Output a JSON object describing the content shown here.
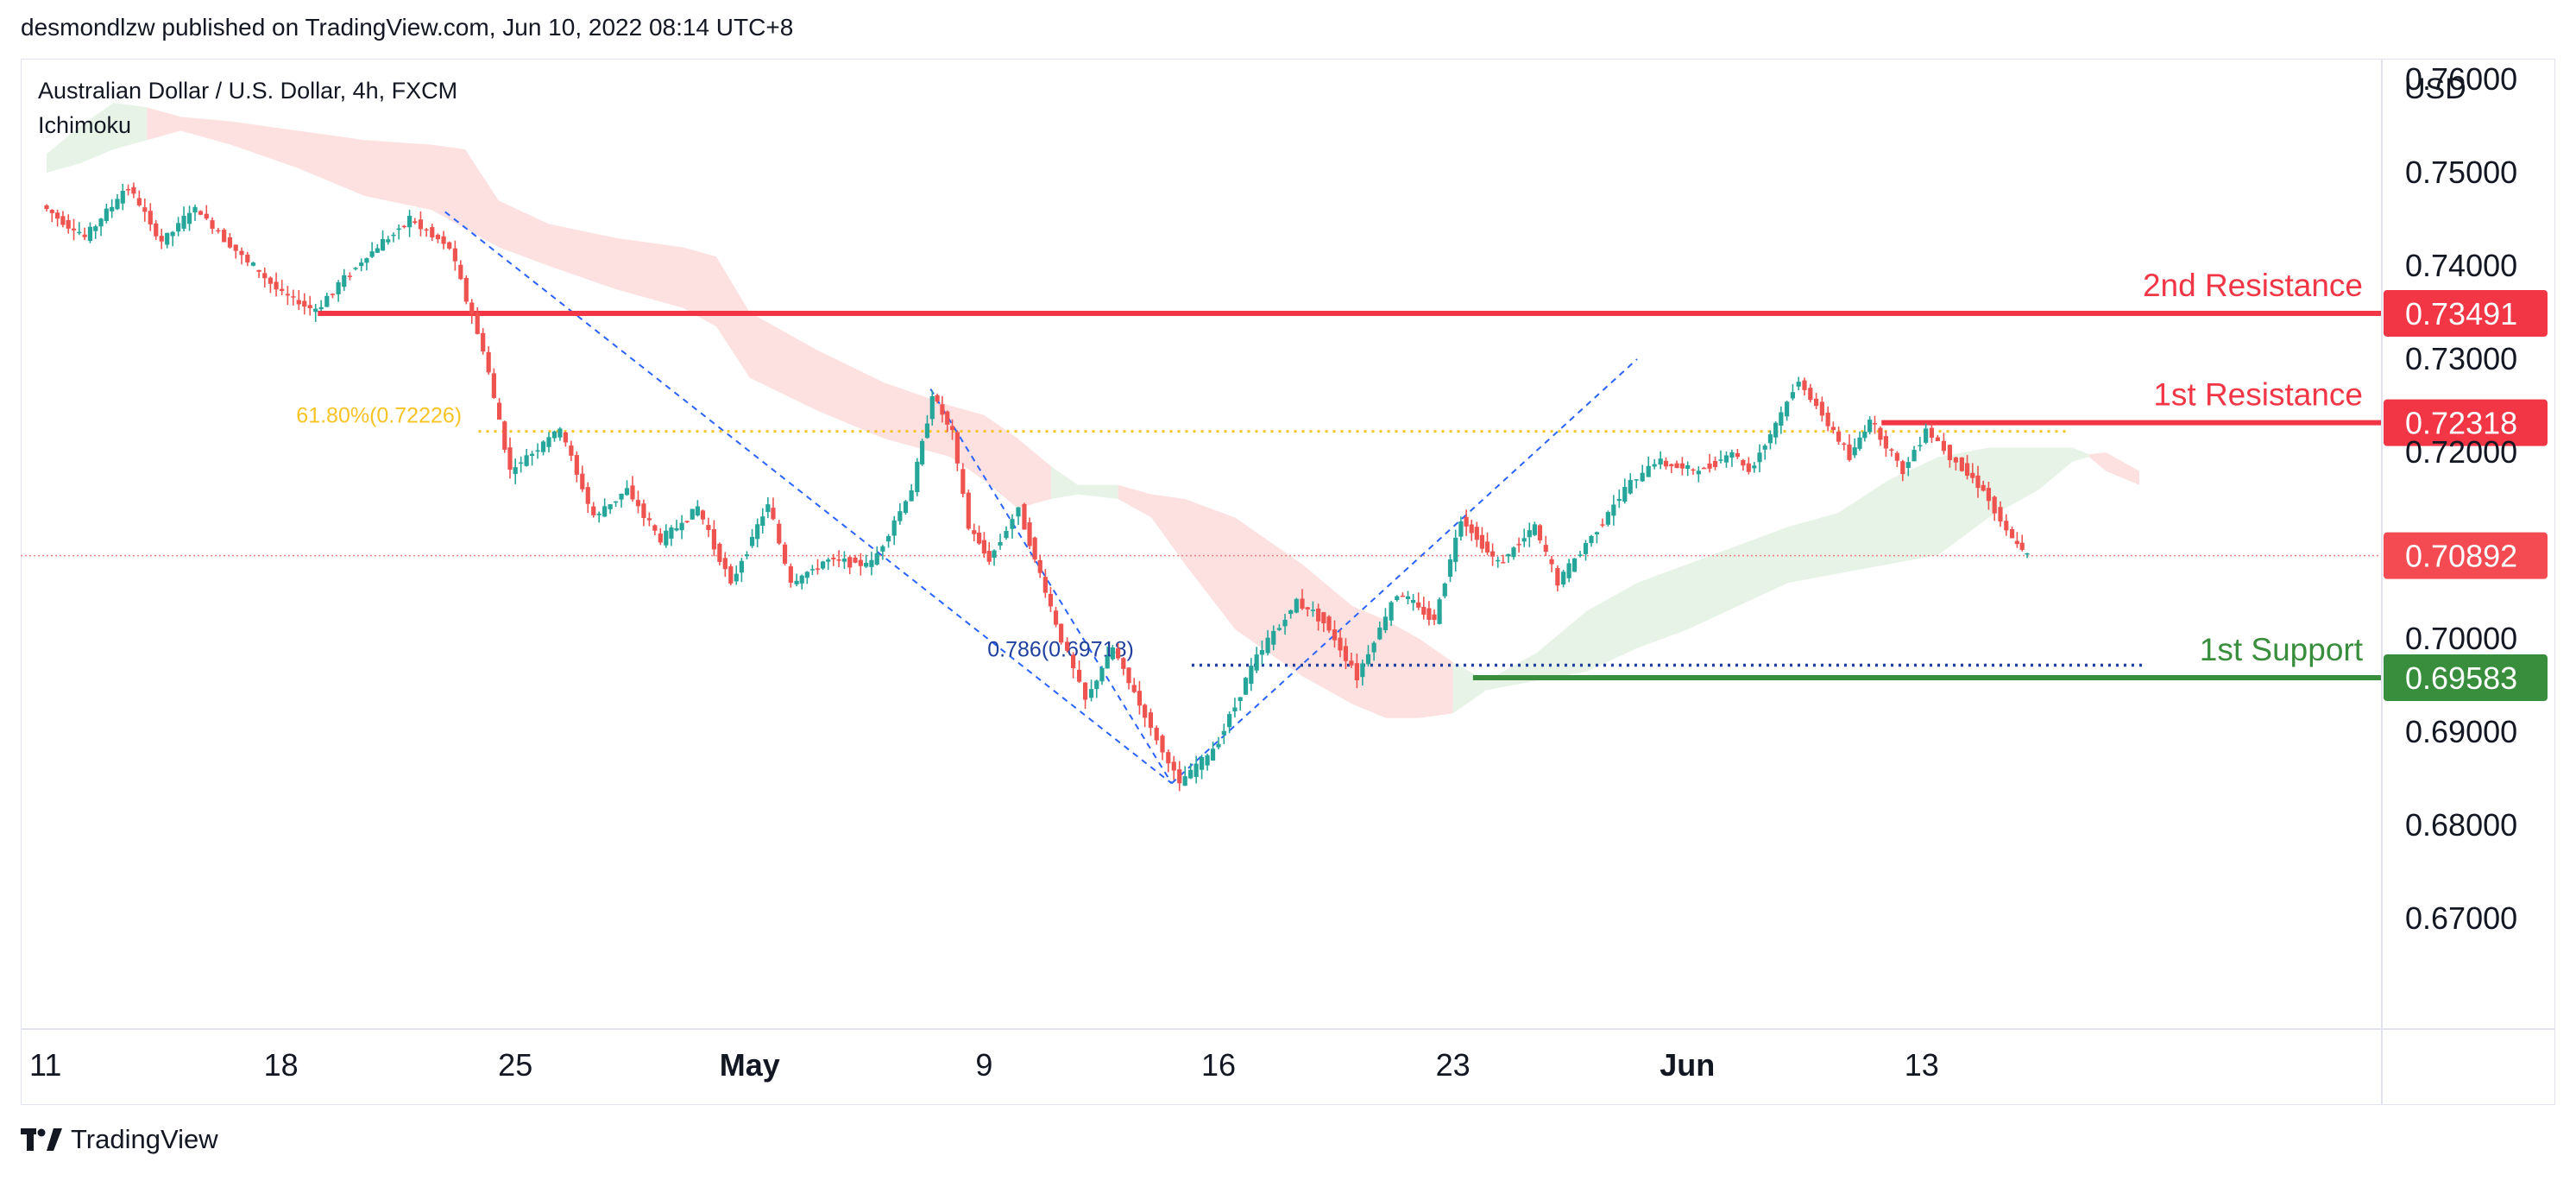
{
  "header": {
    "published_line": "desmondlzw published on TradingView.com, Jun 10, 2022 08:14 UTC+8"
  },
  "footer": {
    "brand": "TradingView"
  },
  "colors": {
    "up": "#26a69a",
    "down": "#ef5350",
    "resistance": "#f23645",
    "support": "#388e3c",
    "fib_gold": "#f7c325",
    "fib_blue": "#1e3f9e",
    "pattern_blue": "#2962ff",
    "cloud_red": "#fde1e1",
    "cloud_green": "#e6f3e6",
    "current_price": "#f08080"
  },
  "chart_data": {
    "type": "candlestick",
    "symbol_line": "Australian Dollar / U.S. Dollar, 4h, FXCM",
    "indicator": "Ichimoku",
    "currency": "USD",
    "y_ticks": [
      "0.76000",
      "0.75000",
      "0.74000",
      "0.73000",
      "0.72000",
      "0.70000",
      "0.69000",
      "0.68000",
      "0.67000"
    ],
    "ylim": [
      0.667,
      0.7625
    ],
    "x_ticks": [
      {
        "label": "11",
        "bold": false
      },
      {
        "label": "18",
        "bold": false
      },
      {
        "label": "25",
        "bold": false
      },
      {
        "label": "May",
        "bold": true
      },
      {
        "label": "9",
        "bold": false
      },
      {
        "label": "16",
        "bold": false
      },
      {
        "label": "23",
        "bold": false
      },
      {
        "label": "Jun",
        "bold": true
      },
      {
        "label": "13",
        "bold": false
      }
    ],
    "x_tick_days": [
      11,
      18,
      25,
      32,
      39,
      46,
      53,
      60,
      67
    ],
    "x_day_range": [
      11,
      74
    ],
    "levels": [
      {
        "name": "2nd Resistance",
        "value": "0.73491",
        "kind": "resistance"
      },
      {
        "name": "1st Resistance",
        "value": "0.72318",
        "kind": "resistance"
      },
      {
        "name": "1st Support",
        "value": "0.69583",
        "kind": "support"
      }
    ],
    "current_price": "0.70892",
    "fib_levels": [
      {
        "label": "61.80%(0.72226)",
        "value": 0.72226
      },
      {
        "label": "0.786(0.69718)",
        "value": 0.69718
      }
    ],
    "swing_points": [
      {
        "day": 22.9,
        "price": 0.7458
      },
      {
        "day": 36.2,
        "price": 0.7096
      },
      {
        "day": 44.6,
        "price": 0.6845
      },
      {
        "day": 58.5,
        "price": 0.73
      }
    ],
    "pivots": [
      [
        11.0,
        0.7465
      ],
      [
        12.3,
        0.743
      ],
      [
        13.6,
        0.7485
      ],
      [
        14.6,
        0.7425
      ],
      [
        15.6,
        0.7462
      ],
      [
        17.0,
        0.741
      ],
      [
        18.2,
        0.737
      ],
      [
        19.2,
        0.7352
      ],
      [
        20.4,
        0.74
      ],
      [
        22.0,
        0.745
      ],
      [
        23.2,
        0.742
      ],
      [
        24.2,
        0.731
      ],
      [
        25.0,
        0.718
      ],
      [
        26.5,
        0.7225
      ],
      [
        27.5,
        0.713
      ],
      [
        28.5,
        0.716
      ],
      [
        29.5,
        0.7105
      ],
      [
        30.6,
        0.714
      ],
      [
        31.6,
        0.706
      ],
      [
        32.7,
        0.7145
      ],
      [
        33.4,
        0.706
      ],
      [
        34.5,
        0.7085
      ],
      [
        35.8,
        0.708
      ],
      [
        37.0,
        0.716
      ],
      [
        37.6,
        0.7262
      ],
      [
        38.2,
        0.722
      ],
      [
        38.7,
        0.712
      ],
      [
        39.3,
        0.7085
      ],
      [
        40.2,
        0.714
      ],
      [
        41.3,
        0.7015
      ],
      [
        42.2,
        0.6935
      ],
      [
        43.0,
        0.699
      ],
      [
        43.8,
        0.693
      ],
      [
        44.5,
        0.688
      ],
      [
        45.0,
        0.6845
      ],
      [
        46.0,
        0.688
      ],
      [
        47.3,
        0.698
      ],
      [
        48.5,
        0.704
      ],
      [
        49.3,
        0.702
      ],
      [
        50.3,
        0.696
      ],
      [
        51.5,
        0.705
      ],
      [
        52.6,
        0.702
      ],
      [
        53.4,
        0.713
      ],
      [
        54.5,
        0.708
      ],
      [
        55.6,
        0.712
      ],
      [
        56.3,
        0.706
      ],
      [
        57.3,
        0.711
      ],
      [
        58.3,
        0.716
      ],
      [
        59.2,
        0.719
      ],
      [
        60.5,
        0.718
      ],
      [
        61.5,
        0.72
      ],
      [
        62.0,
        0.718
      ],
      [
        62.8,
        0.723
      ],
      [
        63.5,
        0.7278
      ],
      [
        64.2,
        0.724
      ],
      [
        65.0,
        0.7195
      ],
      [
        65.6,
        0.7235
      ],
      [
        66.6,
        0.718
      ],
      [
        67.3,
        0.7225
      ],
      [
        68.2,
        0.719
      ],
      [
        69.0,
        0.716
      ],
      [
        69.7,
        0.7115
      ],
      [
        70.3,
        0.7088
      ]
    ],
    "kumo": [
      [
        11.0,
        0.752,
        0.75,
        "green"
      ],
      [
        12.0,
        0.755,
        0.751,
        "green"
      ],
      [
        13.0,
        0.7575,
        0.7525,
        "green"
      ],
      [
        14.0,
        0.757,
        0.7535,
        "green"
      ],
      [
        15.0,
        0.756,
        0.7545,
        "red"
      ],
      [
        16.5,
        0.7555,
        0.753,
        "red"
      ],
      [
        18.5,
        0.7545,
        0.7505,
        "red"
      ],
      [
        20.5,
        0.7535,
        0.7475,
        "red"
      ],
      [
        22.5,
        0.753,
        0.746,
        "red"
      ],
      [
        23.5,
        0.7525,
        0.744,
        "red"
      ],
      [
        24.5,
        0.747,
        0.742,
        "red"
      ],
      [
        26.0,
        0.7445,
        0.74,
        "red"
      ],
      [
        28.0,
        0.743,
        0.7375,
        "red"
      ],
      [
        30.0,
        0.742,
        0.7355,
        "red"
      ],
      [
        31.0,
        0.741,
        0.7335,
        "red"
      ],
      [
        32.0,
        0.735,
        0.728,
        "red"
      ],
      [
        34.0,
        0.731,
        0.7245,
        "red"
      ],
      [
        36.0,
        0.7275,
        0.7215,
        "red"
      ],
      [
        38.0,
        0.725,
        0.7195,
        "red"
      ],
      [
        39.0,
        0.724,
        0.717,
        "red"
      ],
      [
        40.0,
        0.7215,
        0.714,
        "red"
      ],
      [
        41.0,
        0.7185,
        0.715,
        "red"
      ],
      [
        41.8,
        0.7165,
        0.7155,
        "green"
      ],
      [
        43.0,
        0.7165,
        0.715,
        "green"
      ],
      [
        44.0,
        0.7155,
        0.713,
        "red"
      ],
      [
        45.0,
        0.715,
        0.708,
        "red"
      ],
      [
        46.5,
        0.713,
        0.701,
        "red"
      ],
      [
        48.5,
        0.708,
        0.696,
        "red"
      ],
      [
        50.0,
        0.7035,
        0.693,
        "red"
      ],
      [
        51.0,
        0.702,
        0.6915,
        "red"
      ],
      [
        52.0,
        0.7,
        0.6915,
        "red"
      ],
      [
        53.0,
        0.6975,
        0.692,
        "red"
      ],
      [
        54.0,
        0.6955,
        0.6945,
        "green"
      ],
      [
        55.5,
        0.6985,
        0.6955,
        "green"
      ],
      [
        57.0,
        0.703,
        0.6965,
        "green"
      ],
      [
        58.5,
        0.706,
        0.699,
        "green"
      ],
      [
        60.0,
        0.708,
        0.701,
        "green"
      ],
      [
        61.5,
        0.71,
        0.7035,
        "green"
      ],
      [
        63.0,
        0.712,
        0.706,
        "green"
      ],
      [
        64.5,
        0.7135,
        0.707,
        "green"
      ],
      [
        66.0,
        0.717,
        0.708,
        "green"
      ],
      [
        67.5,
        0.7195,
        0.709,
        "green"
      ],
      [
        69.0,
        0.7205,
        0.713,
        "green"
      ],
      [
        70.5,
        0.7205,
        0.716,
        "green"
      ],
      [
        71.5,
        0.7205,
        0.719,
        "green"
      ],
      [
        72.0,
        0.7198,
        0.7195,
        "green"
      ],
      [
        72.5,
        0.72,
        0.718,
        "red"
      ],
      [
        73.5,
        0.718,
        0.7165,
        "red"
      ]
    ]
  }
}
